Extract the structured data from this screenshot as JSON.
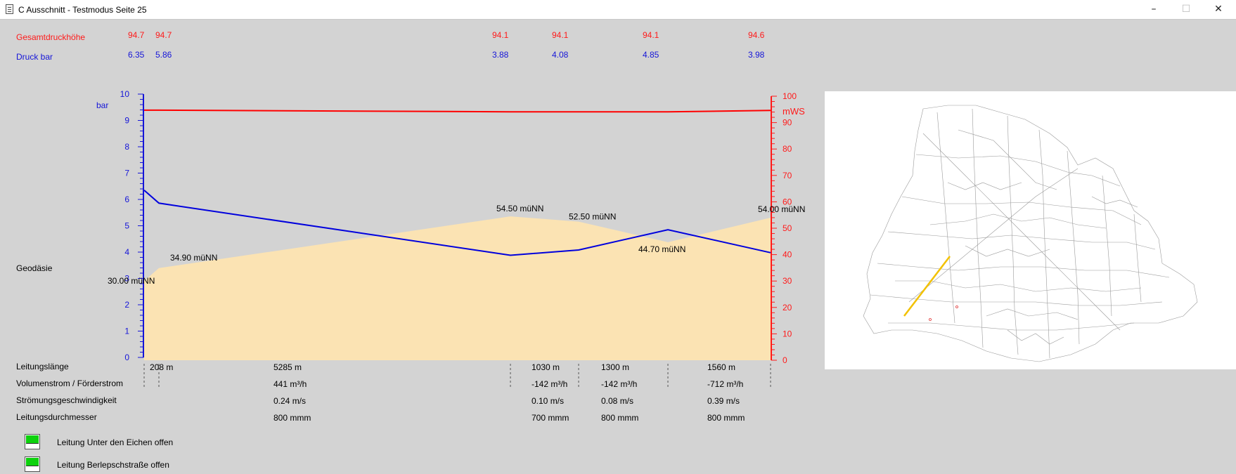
{
  "window": {
    "title": "C Ausschnitt - Testmodus Seite 25",
    "buttons": [
      "–",
      "☐",
      "✕"
    ]
  },
  "header": {
    "gesamt_label": "Gesamtdruckhöhe",
    "gesamt_values": [
      "94.7",
      "94.7",
      "94.1",
      "94.1",
      "94.1",
      "94.6"
    ],
    "druck_label": "Druck bar",
    "druck_values": [
      "6.35",
      "5.86",
      "3.88",
      "4.08",
      "4.85",
      "3.98"
    ]
  },
  "chart_data": {
    "type": "line",
    "left_axis": {
      "label": "bar",
      "range": [
        0,
        10
      ],
      "ticks": [
        "0",
        "1",
        "2",
        "3",
        "4",
        "5",
        "6",
        "7",
        "8",
        "9",
        "10"
      ],
      "color": "#1515d8"
    },
    "right_axis": {
      "label": "mWS",
      "range": [
        0,
        100
      ],
      "ticks": [
        "0",
        "10",
        "20",
        "30",
        "40",
        "50",
        "60",
        "70",
        "80",
        "90",
        "100"
      ],
      "color": "#ff1a1a"
    },
    "x_positions_m": [
      0,
      208,
      5493,
      6523,
      7823,
      9383
    ],
    "series": [
      {
        "values_right": [
          94.7,
          94.7,
          94.1,
          94.1,
          94.1,
          94.6
        ]
      },
      {
        "values_left": [
          6.35,
          5.86,
          3.88,
          4.08,
          4.85,
          3.98
        ]
      }
    ],
    "geodesy": {
      "values_right": [
        30.0,
        34.9,
        54.5,
        52.5,
        44.7,
        54.0
      ],
      "labels": [
        "30.00 müNN",
        "34.90 müNN",
        "54.50 müNN",
        "52.50 müNN",
        "44.70 müNN",
        "54.00 müNN"
      ]
    }
  },
  "rows": {
    "geodaesie_label": "Geodäsie",
    "leitungslaenge_label": "Leitungslänge",
    "leitungslaenge": [
      "208 m",
      "5285 m",
      "1030 m",
      "1300 m",
      "1560 m"
    ],
    "volumenstrom_label": "Volumenstrom / Förderstrom",
    "volumenstrom": [
      "441 m³/h",
      "-142 m³/h",
      "-142 m³/h",
      "-712 m³/h"
    ],
    "geschwindigkeit_label": "Strömungsgeschwindigkeit",
    "geschwindigkeit": [
      "0.24 m/s",
      "0.10 m/s",
      "0.08 m/s",
      "0.39 m/s"
    ],
    "durchmesser_label": "Leitungsdurchmesser",
    "durchmesser": [
      "800 mmm",
      "700 mmm",
      "800 mmm",
      "800 mmm"
    ]
  },
  "checkboxes": [
    {
      "label": "Leitung Unter den Eichen offen"
    },
    {
      "label": "Leitung Berlepschstraße offen"
    }
  ],
  "colors": {
    "background": "#d3d3d3",
    "geodesy_fill": "#fbe3b3",
    "pressure_line": "#0000dd",
    "head_line": "#ff0000",
    "highlight_pipe": "#f2c100",
    "valve_open": "#0dd10d"
  }
}
